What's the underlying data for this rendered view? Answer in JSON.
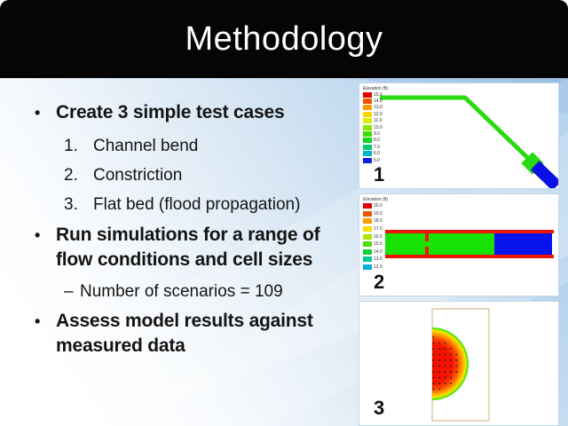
{
  "slide": {
    "title": "Methodology",
    "bullet_glyph": "•",
    "dash_glyph": "–",
    "bullets": [
      {
        "text": "Create 3 simple test cases",
        "items": [
          {
            "num": "1.",
            "text": "Channel bend"
          },
          {
            "num": "2.",
            "text": "Constriction"
          },
          {
            "num": "3.",
            "text": "Flat bed (flood propagation)"
          }
        ]
      },
      {
        "text": "Run simulations for a range of flow conditions and cell sizes",
        "sub": [
          {
            "text": "Number of scenarios = 109"
          }
        ]
      },
      {
        "text": "Assess model results against measured data"
      }
    ]
  },
  "figures": [
    {
      "label": "1",
      "legend": {
        "title": "Elevation (ft)",
        "entries": [
          {
            "value": "15.0",
            "color": "#e10000"
          },
          {
            "value": "14.0",
            "color": "#f55300"
          },
          {
            "value": "13.0",
            "color": "#fa9b00"
          },
          {
            "value": "12.0",
            "color": "#f7d500"
          },
          {
            "value": "11.0",
            "color": "#d8ee00"
          },
          {
            "value": "10.0",
            "color": "#8ae800"
          },
          {
            "value": "9.0",
            "color": "#3ede00"
          },
          {
            "value": "8.0",
            "color": "#0ed426"
          },
          {
            "value": "7.0",
            "color": "#00cc7a"
          },
          {
            "value": "6.0",
            "color": "#00b8c8"
          },
          {
            "value": "5.0",
            "color": "#0b24e0"
          }
        ]
      },
      "colors": {
        "channel": "#2bdb12",
        "bend_block": "#2bdb12",
        "outlet": "#0a10e6"
      }
    },
    {
      "label": "2",
      "legend": {
        "title": "Elevation (ft)",
        "entries": [
          {
            "value": "20.0",
            "color": "#e10000"
          },
          {
            "value": "19.0",
            "color": "#f05500"
          },
          {
            "value": "18.0",
            "color": "#f7a000"
          },
          {
            "value": "17.0",
            "color": "#f2e000"
          },
          {
            "value": "16.0",
            "color": "#aae800"
          },
          {
            "value": "15.0",
            "color": "#50de00"
          },
          {
            "value": "14.0",
            "color": "#0cd235"
          },
          {
            "value": "13.0",
            "color": "#00c896"
          },
          {
            "value": "12.0",
            "color": "#00aede"
          }
        ]
      },
      "colors": {
        "bank": "#ee1505",
        "water_green": "#18e204",
        "water_blue": "#0713ea"
      }
    },
    {
      "label": "3",
      "colors": {
        "center": "#f50d00",
        "mid": "#ff8c00",
        "outer_yellow": "#f2e000",
        "edge_ring": "#2ce815",
        "domain_border": "#dcba8e",
        "vector_dots": "#1a1a1a"
      }
    }
  ]
}
